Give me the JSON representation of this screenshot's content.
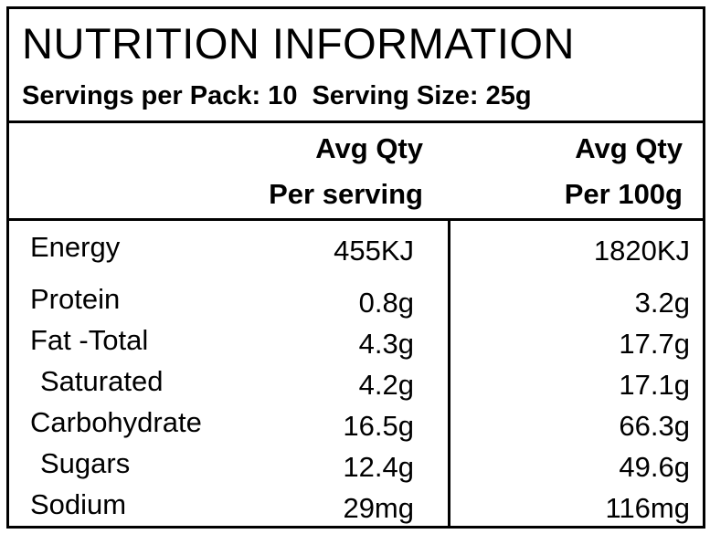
{
  "title": "NUTRITION INFORMATION",
  "servings_per_pack": "Servings per Pack: 10",
  "serving_size": "Serving Size: 25g",
  "columns": {
    "per_serving_line1": "Avg Qty",
    "per_serving_line2": "Per serving",
    "per_100g_line1": "Avg Qty",
    "per_100g_line2": "Per 100g"
  },
  "rows": [
    {
      "name": "Energy",
      "per_serving": "455KJ",
      "per_100g": "1820KJ"
    },
    {
      "name": "Protein",
      "per_serving": "0.8g",
      "per_100g": "3.2g"
    },
    {
      "name": "Fat -Total",
      "per_serving": "4.3g",
      "per_100g": "17.7g"
    },
    {
      "name": "Saturated",
      "per_serving": "4.2g",
      "per_100g": "17.1g"
    },
    {
      "name": "Carbohydrate",
      "per_serving": "16.5g",
      "per_100g": "66.3g"
    },
    {
      "name": "Sugars",
      "per_serving": "12.4g",
      "per_100g": "49.6g"
    },
    {
      "name": "Sodium",
      "per_serving": "29mg",
      "per_100g": "116mg"
    }
  ]
}
